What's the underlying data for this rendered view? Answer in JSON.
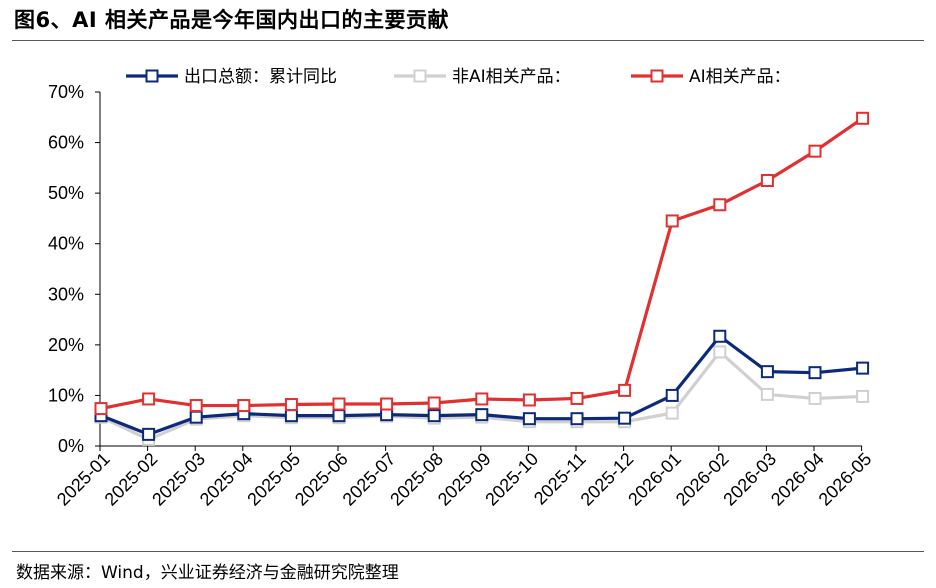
{
  "header": {
    "title": "图6、AI 相关产品是今年国内出口的主要贡献"
  },
  "footer": {
    "source": "数据来源：Wind，兴业证券经济与金融研究院整理"
  },
  "colors": {
    "total": "#0c2a7c",
    "non_ai": "#d0d0d0",
    "ai": "#e03030",
    "axis": "#000000"
  },
  "chart_data": {
    "type": "line",
    "title": "",
    "xlabel": "",
    "ylabel": "",
    "ylim": [
      0,
      70
    ],
    "y_ticks": [
      "0%",
      "10%",
      "20%",
      "30%",
      "40%",
      "50%",
      "60%",
      "70%"
    ],
    "y_tick_values": [
      0,
      10,
      20,
      30,
      40,
      50,
      60,
      70
    ],
    "grid": false,
    "legend_position": "top",
    "x": [
      "2025-01",
      "2025-02",
      "2025-03",
      "2025-04",
      "2025-05",
      "2025-06",
      "2025-07",
      "2025-08",
      "2025-09",
      "2025-10",
      "2025-11",
      "2025-12",
      "2026-01",
      "2026-02",
      "2026-03",
      "2026-04",
      "2026-05"
    ],
    "series": [
      {
        "key": "total",
        "name": "出口总额：累计同比",
        "values": [
          6.0,
          2.3,
          5.7,
          6.4,
          6.0,
          6.0,
          6.2,
          6.0,
          6.2,
          5.4,
          5.4,
          5.5,
          10.0,
          21.7,
          14.7,
          14.5,
          15.4
        ]
      },
      {
        "key": "non_ai",
        "name": "非AI相关产品：",
        "values": [
          5.7,
          1.3,
          5.3,
          6.0,
          5.6,
          5.6,
          5.9,
          5.5,
          5.7,
          4.8,
          4.8,
          4.8,
          6.5,
          18.6,
          10.2,
          9.4,
          9.8
        ]
      },
      {
        "key": "ai",
        "name": "AI相关产品：",
        "values": [
          7.4,
          9.3,
          8.0,
          8.0,
          8.2,
          8.3,
          8.3,
          8.5,
          9.3,
          9.1,
          9.4,
          11.0,
          44.5,
          47.7,
          52.5,
          58.3,
          64.8
        ]
      }
    ]
  }
}
